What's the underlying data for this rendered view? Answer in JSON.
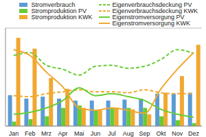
{
  "chart_data": {
    "type": "bar",
    "categories": [
      "Jan",
      "Feb",
      "Mrz",
      "Apr",
      "Mai",
      "Jun",
      "Jul",
      "Aug",
      "Sep",
      "Okt",
      "Nov",
      "Dez"
    ],
    "series": [
      {
        "name": "Stromverbrauch",
        "type": "bar",
        "color": "#5b9bd5",
        "values": [
          31.5,
          28,
          30,
          28,
          26,
          26,
          26,
          27,
          28,
          33,
          33,
          34
        ]
      },
      {
        "name": "Stromproduktion PV",
        "type": "bar",
        "color": "#66cc33",
        "values": [
          4.5,
          7,
          10,
          18.5,
          21,
          16,
          18.5,
          18.5,
          18.5,
          10,
          6,
          3
        ]
      },
      {
        "name": "Stromproduktion KWK",
        "type": "bar",
        "color": "#f0a830",
        "values": [
          90,
          79,
          49,
          38,
          18.5,
          16,
          18.5,
          17,
          12,
          34,
          51,
          83
        ]
      },
      {
        "name": "Eigenverbrauchsdeckung PV",
        "type": "line",
        "line_style": "dashed",
        "color": "#66cc33",
        "values": [
          72,
          75,
          62,
          58,
          52,
          61,
          62,
          59,
          61,
          68,
          78,
          74
        ]
      },
      {
        "name": "Eigenverbrauchsdeckung KWK",
        "type": "line",
        "line_style": "dashed",
        "color": "#f0a830",
        "values": [
          31,
          30,
          33,
          35,
          37,
          35,
          35,
          34,
          37,
          34,
          33,
          33
        ]
      },
      {
        "name": "Eigenstromversorgung PV",
        "type": "line",
        "line_style": "solid",
        "color": "#66cc33",
        "values": [
          12,
          14,
          18.5,
          26,
          39,
          31,
          33,
          30,
          26,
          17,
          12,
          9
        ]
      },
      {
        "name": "Eigenstromversorgung KWK",
        "type": "line",
        "line_style": "solid",
        "color": "#f0a830",
        "values": [
          78,
          72,
          55,
          40,
          18.5,
          16,
          18.5,
          16,
          13,
          38,
          58,
          75
        ]
      }
    ],
    "ylim": [
      0,
      100
    ],
    "yticks": [
      0,
      25,
      50,
      75,
      100
    ],
    "grid": true,
    "legend": "top",
    "tick_labels": "x"
  }
}
